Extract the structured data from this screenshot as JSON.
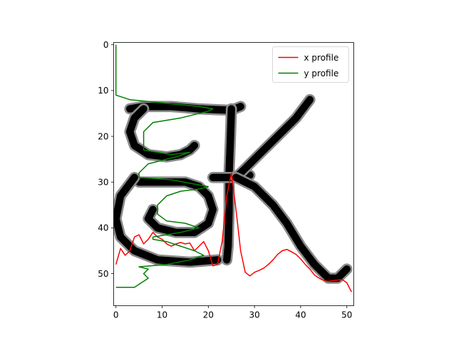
{
  "chart_data": {
    "type": "heatmap",
    "title": "",
    "xlabel": "",
    "ylabel": "",
    "xlim": [
      -0.5,
      51.5
    ],
    "ylim": [
      57,
      -0.5
    ],
    "x_ticks": [
      0,
      10,
      20,
      30,
      40,
      50
    ],
    "y_ticks": [
      0,
      10,
      20,
      30,
      40,
      50
    ],
    "x_tick_labels": [
      "0",
      "10",
      "20",
      "30",
      "40",
      "50"
    ],
    "y_tick_labels": [
      "0",
      "10",
      "20",
      "30",
      "40",
      "50"
    ],
    "image": {
      "description_source": "grayscale handwritten glyph image 52x57, dark strokes on white",
      "rows": 57,
      "cols": 52,
      "strokes": [
        {
          "name": "top-bar",
          "points": [
            [
              3,
              14
            ],
            [
              6,
              13.5
            ],
            [
              12,
              13.5
            ],
            [
              18,
              14
            ],
            [
              22,
              14.2
            ],
            [
              25,
              14.3
            ],
            [
              27,
              13.5
            ]
          ]
        },
        {
          "name": "upper-loop",
          "points": [
            [
              6,
              14
            ],
            [
              4,
              16
            ],
            [
              3,
              19
            ],
            [
              4,
              22
            ],
            [
              7,
              24
            ],
            [
              11,
              24.5
            ],
            [
              14,
              24
            ],
            [
              16,
              23
            ],
            [
              17,
              22
            ]
          ]
        },
        {
          "name": "left-lower-loop",
          "points": [
            [
              5,
              30
            ],
            [
              10,
              30
            ],
            [
              15,
              30
            ],
            [
              18,
              31
            ],
            [
              20,
              33
            ],
            [
              21,
              36
            ],
            [
              20,
              39
            ],
            [
              17,
              41
            ],
            [
              13,
              41
            ],
            [
              9,
              40
            ],
            [
              7,
              38
            ],
            [
              8,
              36
            ]
          ]
        },
        {
          "name": "bottom-bowl",
          "points": [
            [
              4,
              29
            ],
            [
              1,
              33
            ],
            [
              0,
              38
            ],
            [
              1,
              42
            ],
            [
              4,
              45
            ],
            [
              9,
              47
            ],
            [
              16,
              47.5
            ],
            [
              22,
              47
            ]
          ]
        },
        {
          "name": "stem",
          "points": [
            [
              25,
              14
            ],
            [
              24.8,
              20
            ],
            [
              24.5,
              28
            ],
            [
              24.5,
              36
            ],
            [
              24.3,
              44
            ],
            [
              24,
              47
            ]
          ]
        },
        {
          "name": "crossbar",
          "points": [
            [
              21,
              29
            ],
            [
              25,
              29
            ],
            [
              29,
              28.5
            ]
          ]
        },
        {
          "name": "k-arm",
          "points": [
            [
              42,
              12
            ],
            [
              39,
              16
            ],
            [
              35,
              20
            ],
            [
              31,
              24
            ],
            [
              28,
              27
            ],
            [
              26,
              29
            ]
          ]
        },
        {
          "name": "k-leg",
          "points": [
            [
              26,
              29
            ],
            [
              30,
              31
            ],
            [
              34,
              35
            ],
            [
              37,
              39
            ],
            [
              40,
              44
            ],
            [
              43,
              48
            ],
            [
              46,
              51
            ],
            [
              48,
              51
            ],
            [
              50,
              49
            ]
          ]
        }
      ]
    },
    "series": [
      {
        "name": "x profile",
        "color": "#ff0000",
        "x": [
          0,
          1,
          2,
          3,
          4,
          5,
          6,
          7,
          8,
          9,
          10,
          11,
          12,
          13,
          14,
          15,
          16,
          17,
          18,
          19,
          20,
          21,
          22,
          23,
          24,
          25,
          26,
          27,
          28,
          29,
          30,
          31,
          32,
          33,
          34,
          35,
          36,
          37,
          38,
          39,
          40,
          41,
          42,
          43,
          44,
          45,
          46,
          47,
          48,
          49,
          50,
          51
        ],
        "y": [
          48,
          44.5,
          46,
          45,
          42,
          41.5,
          43.5,
          42.5,
          41,
          42,
          42.5,
          43.5,
          44,
          43.5,
          43.2,
          43.5,
          43.3,
          45,
          44,
          43,
          45,
          48.3,
          48,
          43,
          33,
          28,
          36,
          45,
          49.7,
          50.5,
          49.7,
          49.3,
          48.8,
          48,
          47,
          45.8,
          45,
          44.7,
          45.2,
          45.8,
          46.8,
          48,
          49,
          50.3,
          51,
          51.5,
          51.7,
          51.5,
          51.4,
          51.3,
          52,
          54
        ]
      },
      {
        "name": "y profile",
        "color": "#008000",
        "x": [
          0,
          0,
          0,
          0,
          0,
          0,
          0,
          0,
          0,
          0,
          0,
          0,
          3,
          8,
          13,
          18,
          21,
          20,
          14,
          8,
          6,
          6,
          6,
          6,
          12,
          16,
          13,
          7,
          5,
          5,
          12,
          20,
          18,
          14,
          11,
          9,
          9,
          11,
          15,
          18,
          14,
          8,
          8,
          11,
          14,
          17,
          19,
          16,
          11,
          5,
          7,
          6,
          7,
          4,
          0,
          0,
          0
        ],
        "y": [
          0,
          1,
          2,
          3,
          4,
          5,
          6,
          7,
          8,
          9,
          10,
          11,
          12,
          12.5,
          13,
          13.5,
          14,
          14.5,
          16,
          17,
          19,
          21,
          22.5,
          23,
          24,
          23.5,
          24.5,
          26,
          28,
          29,
          29.5,
          31,
          31.5,
          32,
          33,
          35,
          37,
          38.5,
          39,
          40,
          41,
          42,
          42.5,
          43,
          44,
          45,
          46,
          47,
          48,
          48.5,
          49,
          50,
          51,
          53,
          53,
          53,
          53
        ]
      }
    ],
    "legend": {
      "placement": "top-right",
      "entries": [
        "x profile",
        "y profile"
      ]
    },
    "grid": false
  }
}
